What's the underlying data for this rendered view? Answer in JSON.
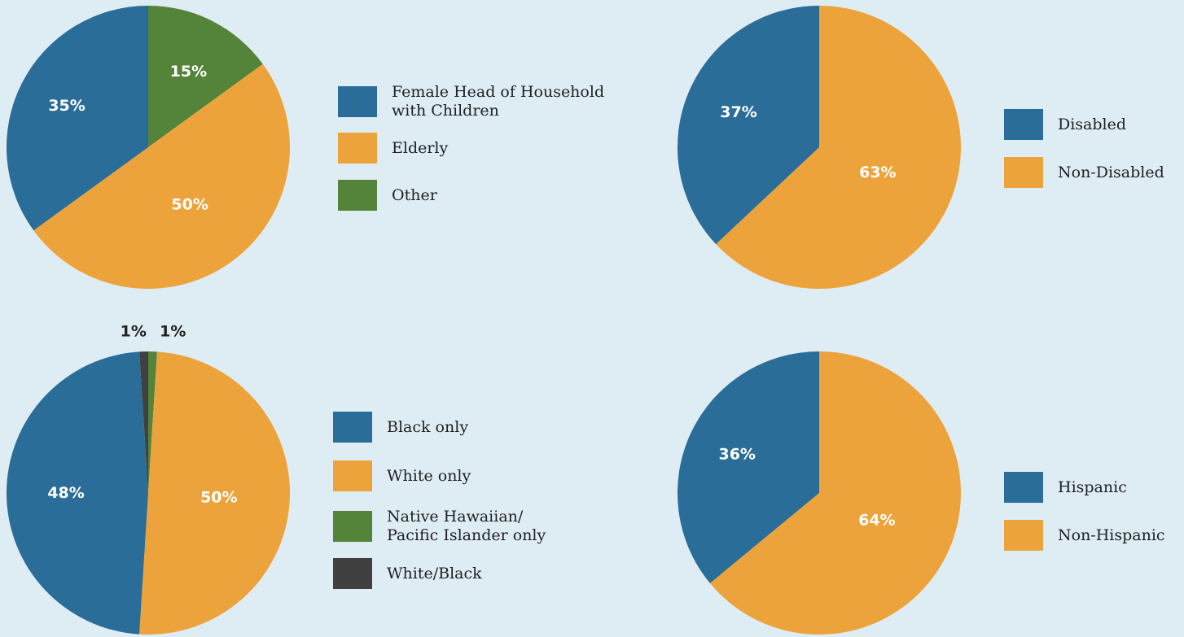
{
  "chart_data": [
    {
      "type": "pie",
      "title": "",
      "categories": [
        "Female Head of Household\nwith Children",
        "Elderly",
        "Other"
      ],
      "values": [
        35,
        50,
        15
      ],
      "labels": [
        "35%",
        "50%",
        "15%"
      ],
      "colors": [
        "#2a6d98",
        "#eda33c",
        "#53843a"
      ]
    },
    {
      "type": "pie",
      "title": "",
      "categories": [
        "Disabled",
        "Non-Disabled"
      ],
      "values": [
        37,
        63
      ],
      "labels": [
        "37%",
        "63%"
      ],
      "colors": [
        "#2a6d98",
        "#eda33c"
      ]
    },
    {
      "type": "pie",
      "title": "",
      "categories": [
        "Black only",
        "White only",
        "Native Hawaiian/\nPacific Islander only",
        "White/Black"
      ],
      "values": [
        48,
        50,
        1,
        1
      ],
      "labels": [
        "48%",
        "50%",
        "1%",
        "1%"
      ],
      "colors": [
        "#2a6d98",
        "#eda33c",
        "#53843a",
        "#404040"
      ]
    },
    {
      "type": "pie",
      "title": "",
      "categories": [
        "Hispanic",
        "Non-Hispanic"
      ],
      "values": [
        36,
        64
      ],
      "labels": [
        "36%",
        "64%"
      ],
      "colors": [
        "#2a6d98",
        "#eda33c"
      ]
    }
  ]
}
